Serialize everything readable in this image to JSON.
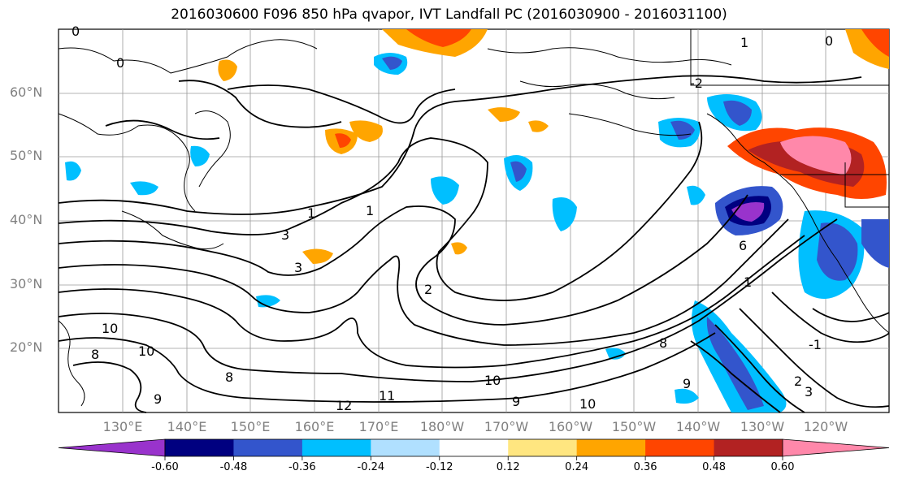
{
  "title": "2016030600 F096 850 hPa qvapor, IVT Landfall PC (2016030900 - 2016031100)",
  "map": {
    "lat_labels": [
      "60°N",
      "50°N",
      "40°N",
      "30°N",
      "20°N"
    ],
    "lon_labels": [
      "130°E",
      "140°E",
      "150°E",
      "160°E",
      "170°E",
      "180°W",
      "170°W",
      "160°W",
      "150°W",
      "140°W",
      "130°W",
      "120°W"
    ],
    "contour_labels": [
      "0",
      "0",
      "1",
      "0",
      "-2",
      "1",
      "1",
      "3",
      "3",
      "2",
      "10",
      "10",
      "8",
      "9",
      "11",
      "12",
      "10",
      "9",
      "10",
      "8",
      "6",
      "1",
      "-1",
      "2",
      "3",
      "9",
      "8"
    ],
    "colors": {
      "land_line": "#000000",
      "grid": "#9a9a9a"
    }
  },
  "colorbar": {
    "tick_labels": [
      "-0.60",
      "-0.48",
      "-0.36",
      "-0.24",
      "-0.12",
      "0.12",
      "0.24",
      "0.36",
      "0.48",
      "0.60"
    ],
    "colors": [
      "#9933cc",
      "#000080",
      "#3355cc",
      "#00bfff",
      "#b0e0ff",
      "#ffffff",
      "#ffe680",
      "#ffa500",
      "#ff4500",
      "#b22222",
      "#ff88aa"
    ]
  }
}
